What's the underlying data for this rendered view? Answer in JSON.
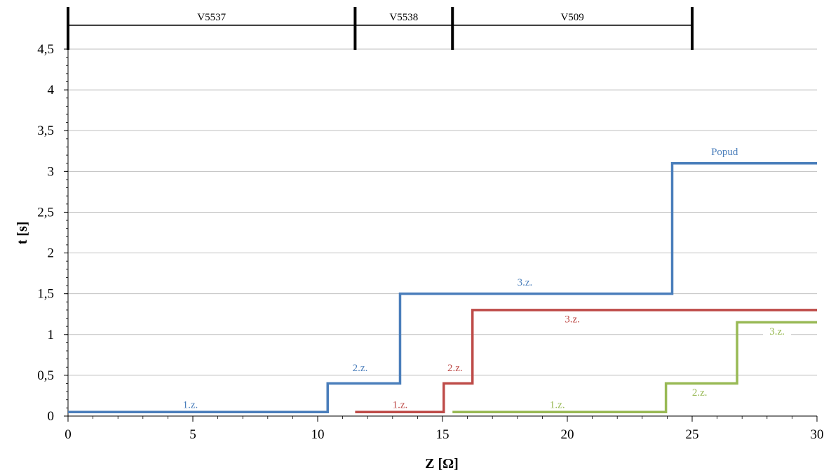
{
  "chart_data": {
    "type": "line",
    "xlabel": "Z [Ω]",
    "ylabel": "t [s]",
    "xlim": [
      0,
      30
    ],
    "ylim": [
      0,
      4.5
    ],
    "x_ticks": [
      "0",
      "5",
      "10",
      "15",
      "20",
      "25",
      "30"
    ],
    "y_ticks": [
      "0",
      "0,5",
      "1",
      "1,5",
      "2",
      "2,5",
      "3",
      "3,5",
      "4",
      "4,5"
    ],
    "grid": "horizontal",
    "colors": {
      "blue": "#4a7ebb",
      "red": "#be4b48",
      "green": "#98b954",
      "grid": "#bfbfbf",
      "axis": "#000000"
    },
    "series": [
      {
        "color": "#4a7ebb",
        "step_points": [
          [
            0,
            0.05
          ],
          [
            10.4,
            0.05
          ],
          [
            10.4,
            0.4
          ],
          [
            13.3,
            0.4
          ],
          [
            13.3,
            1.5
          ],
          [
            24.2,
            1.5
          ],
          [
            24.2,
            3.1
          ],
          [
            30,
            3.1
          ]
        ],
        "labels": [
          {
            "text": "1.z.",
            "x": 4.9,
            "y": 0.1
          },
          {
            "text": "2.z.",
            "x": 11.7,
            "y": 0.55
          },
          {
            "text": "3.z.",
            "x": 18.3,
            "y": 1.6
          },
          {
            "text": "Popud",
            "x": 26.3,
            "y": 3.2
          }
        ]
      },
      {
        "color": "#be4b48",
        "step_points": [
          [
            11.5,
            0.05
          ],
          [
            15.05,
            0.05
          ],
          [
            15.05,
            0.4
          ],
          [
            16.2,
            0.4
          ],
          [
            16.2,
            1.3
          ],
          [
            30,
            1.3
          ]
        ],
        "labels": [
          {
            "text": "1.z.",
            "x": 13.3,
            "y": 0.1
          },
          {
            "text": "2.z.",
            "x": 15.5,
            "y": 0.55
          },
          {
            "text": "3.z.",
            "x": 20.2,
            "y": 1.15
          }
        ]
      },
      {
        "color": "#98b954",
        "step_points": [
          [
            15.4,
            0.05
          ],
          [
            23.95,
            0.05
          ],
          [
            23.95,
            0.4
          ],
          [
            26.8,
            0.4
          ],
          [
            26.8,
            1.15
          ],
          [
            30,
            1.15
          ]
        ],
        "labels": [
          {
            "text": "1.z.",
            "x": 19.6,
            "y": 0.1
          },
          {
            "text": "2.z.",
            "x": 25.3,
            "y": 0.25
          },
          {
            "text": "3.z.",
            "x": 28.4,
            "y": 1.0
          }
        ]
      }
    ],
    "sections": [
      {
        "label": "V5537",
        "from": 0,
        "to": 11.5
      },
      {
        "label": "V5538",
        "from": 11.5,
        "to": 15.4
      },
      {
        "label": "V509",
        "from": 15.4,
        "to": 25
      }
    ]
  }
}
